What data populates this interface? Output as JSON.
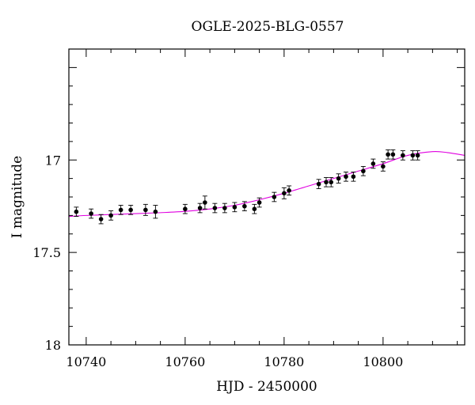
{
  "chart_data": {
    "type": "scatter",
    "title": "OGLE-2025-BLG-0557",
    "xlabel": "HJD - 2450000",
    "ylabel": "I magnitude",
    "xlim": [
      10736.5,
      10816.5
    ],
    "ylim": [
      18.0,
      16.4
    ],
    "y_inverted": true,
    "grid": false,
    "x_major_ticks": [
      10740,
      10760,
      10780,
      10800
    ],
    "x_tick_labels": [
      "10740",
      "10760",
      "10780",
      "10800"
    ],
    "y_major_ticks": [
      17,
      17.5,
      18
    ],
    "y_tick_labels": [
      "17",
      "17.5",
      "18"
    ],
    "colors": {
      "data": "#000000",
      "model": "#e000e0",
      "axes": "#000000"
    },
    "series": [
      {
        "kind": "points_with_error_bars",
        "x": [
          10738.0,
          10741.0,
          10743.0,
          10745.0,
          10747.0,
          10749.0,
          10752.0,
          10754.0,
          10760.0,
          10763.0,
          10764.0,
          10766.0,
          10768.0,
          10770.0,
          10772.0,
          10774.0,
          10775.0,
          10778.0,
          10780.0,
          10781.0,
          10787.0,
          10788.5,
          10789.5,
          10791.0,
          10792.5,
          10794.0,
          10796.0,
          10798.0,
          10800.0,
          10801.0,
          10802.0,
          10804.0,
          10806.0,
          10807.0
        ],
        "y": [
          17.28,
          17.29,
          17.32,
          17.3,
          17.27,
          17.27,
          17.27,
          17.28,
          17.265,
          17.26,
          17.23,
          17.26,
          17.26,
          17.255,
          17.25,
          17.265,
          17.23,
          17.2,
          17.18,
          17.165,
          17.13,
          17.12,
          17.12,
          17.1,
          17.09,
          17.09,
          17.06,
          17.02,
          17.035,
          16.97,
          16.97,
          16.975,
          16.975,
          16.975
        ],
        "yerr": [
          0.025,
          0.025,
          0.025,
          0.025,
          0.025,
          0.025,
          0.03,
          0.035,
          0.025,
          0.025,
          0.035,
          0.025,
          0.025,
          0.025,
          0.025,
          0.025,
          0.025,
          0.025,
          0.03,
          0.025,
          0.025,
          0.025,
          0.025,
          0.025,
          0.025,
          0.025,
          0.025,
          0.025,
          0.025,
          0.025,
          0.025,
          0.025,
          0.025,
          0.025
        ]
      },
      {
        "kind": "model_curve",
        "x": [
          10736.5,
          10740,
          10745,
          10750,
          10755,
          10760,
          10765,
          10770,
          10775,
          10780,
          10785,
          10790,
          10795,
          10800,
          10805,
          10810,
          10813,
          10816.5
        ],
        "y": [
          17.305,
          17.3,
          17.295,
          17.29,
          17.285,
          17.278,
          17.265,
          17.245,
          17.215,
          17.18,
          17.14,
          17.1,
          17.06,
          17.02,
          16.975,
          16.955,
          16.96,
          16.975
        ]
      }
    ]
  }
}
